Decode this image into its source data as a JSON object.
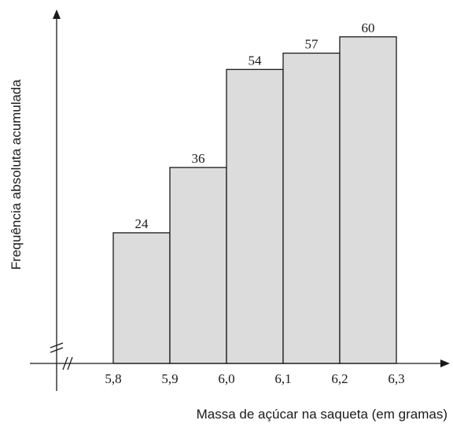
{
  "chart_data": {
    "type": "bar",
    "subtype": "cumulative-histogram",
    "bins": [
      {
        "from": 5.8,
        "to": 5.9,
        "value": 24
      },
      {
        "from": 5.9,
        "to": 6.0,
        "value": 36
      },
      {
        "from": 6.0,
        "to": 6.1,
        "value": 54
      },
      {
        "from": 6.1,
        "to": 6.2,
        "value": 57
      },
      {
        "from": 6.2,
        "to": 6.3,
        "value": 60
      }
    ],
    "values": [
      24,
      36,
      54,
      57,
      60
    ],
    "x_ticks": [
      "5,8",
      "5,9",
      "6,0",
      "6,1",
      "6,2",
      "6,3"
    ],
    "xlabel": "Massa de açúcar na saqueta (em gramas)",
    "ylabel": "Frequência absoluta acumulada",
    "axis_breaks": true,
    "grid": false,
    "colors": {
      "bar_fill": "#dcdcdc",
      "bar_stroke": "#1a1a1a"
    }
  }
}
